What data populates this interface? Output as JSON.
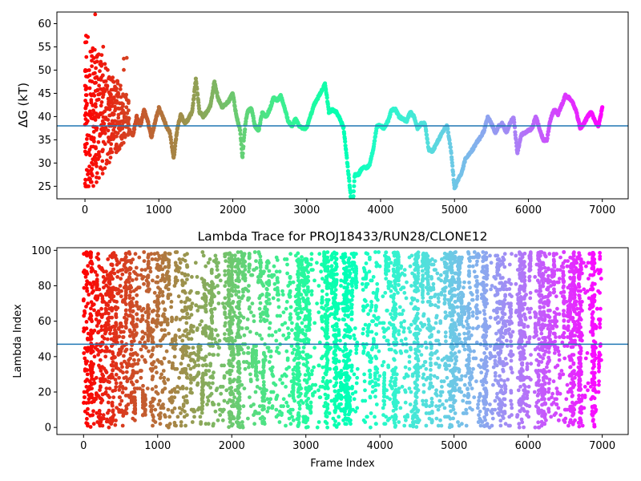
{
  "chart_data": [
    {
      "type": "scatter",
      "title": "",
      "xlabel": "",
      "ylabel": "ΔG (kT)",
      "xlim": [
        -380,
        7350
      ],
      "ylim": [
        22.3,
        62.5
      ],
      "xticks": [
        0,
        1000,
        2000,
        3000,
        4000,
        5000,
        6000,
        7000
      ],
      "xtick_labels": [
        "0",
        "1000",
        "2000",
        "3000",
        "4000",
        "5000",
        "6000",
        "7000"
      ],
      "yticks": [
        25,
        30,
        35,
        40,
        45,
        50,
        55,
        60
      ],
      "ytick_labels": [
        "25",
        "30",
        "35",
        "40",
        "45",
        "50",
        "55",
        "60"
      ],
      "hline": 38.0,
      "colormap": "rainbow (red at frame 0 → violet at frame 7000)",
      "grid": false,
      "trace_keypoints": {
        "x": [
          600,
          650,
          700,
          750,
          800,
          850,
          900,
          950,
          1000,
          1050,
          1100,
          1150,
          1200,
          1250,
          1300,
          1350,
          1400,
          1450,
          1500,
          1550,
          1600,
          1650,
          1700,
          1750,
          1800,
          1850,
          1900,
          1950,
          2000,
          2050,
          2100,
          2130,
          2150,
          2170,
          2200,
          2250,
          2300,
          2350,
          2400,
          2450,
          2500,
          2550,
          2600,
          2650,
          2700,
          2750,
          2800,
          2850,
          2900,
          2950,
          3000,
          3050,
          3100,
          3150,
          3200,
          3250,
          3300,
          3350,
          3400,
          3450,
          3500,
          3550,
          3600,
          3630,
          3650,
          3700,
          3750,
          3800,
          3850,
          3900,
          3950,
          4000,
          4050,
          4100,
          4150,
          4200,
          4250,
          4300,
          4350,
          4400,
          4450,
          4500,
          4550,
          4600,
          4650,
          4700,
          4750,
          4800,
          4850,
          4900,
          4950,
          5000,
          5050,
          5100,
          5150,
          5200,
          5250,
          5300,
          5350,
          5400,
          5450,
          5500,
          5550,
          5600,
          5650,
          5700,
          5750,
          5800,
          5850,
          5900,
          5950,
          6000,
          6050,
          6100,
          6150,
          6200,
          6250,
          6300,
          6350,
          6400,
          6450,
          6500,
          6550,
          6600,
          6650,
          6700,
          6750,
          6800,
          6850,
          6900,
          6950,
          7000
        ],
        "y": [
          37.0,
          36.0,
          40.0,
          38.0,
          41.5,
          39.0,
          35.5,
          39.0,
          41.8,
          40.0,
          38.0,
          36.5,
          31.0,
          37.5,
          40.5,
          38.5,
          39.5,
          41.0,
          48.0,
          41.0,
          40.0,
          41.0,
          42.5,
          47.5,
          44.0,
          42.0,
          42.5,
          43.5,
          45.0,
          40.0,
          37.0,
          31.0,
          35.0,
          38.5,
          41.0,
          42.0,
          38.0,
          37.0,
          41.0,
          40.0,
          41.5,
          44.0,
          43.5,
          44.5,
          42.0,
          39.0,
          38.0,
          39.5,
          38.0,
          37.5,
          37.5,
          40.0,
          42.5,
          44.0,
          45.5,
          47.0,
          41.0,
          41.5,
          41.0,
          39.5,
          37.5,
          30.0,
          22.3,
          22.3,
          27.5,
          27.5,
          29.0,
          29.0,
          29.5,
          33.0,
          38.0,
          38.0,
          37.5,
          39.0,
          41.5,
          41.5,
          40.0,
          39.5,
          39.0,
          41.0,
          40.0,
          37.5,
          38.5,
          38.5,
          33.0,
          32.5,
          34.0,
          35.5,
          37.0,
          38.0,
          33.0,
          24.5,
          26.5,
          28.0,
          31.0,
          32.0,
          33.0,
          34.5,
          35.5,
          37.0,
          40.0,
          38.5,
          36.5,
          38.0,
          38.5,
          36.5,
          38.5,
          40.0,
          32.0,
          36.0,
          36.5,
          37.0,
          37.5,
          40.0,
          37.5,
          35.0,
          35.0,
          39.5,
          41.5,
          40.5,
          42.5,
          44.5,
          44.0,
          43.0,
          41.0,
          37.5,
          38.5,
          40.0,
          41.0,
          39.0,
          38.0,
          42.0
        ]
      }
    },
    {
      "type": "scatter",
      "title": "Lambda Trace for PROJ18433/RUN28/CLONE12",
      "xlabel": "Frame Index",
      "ylabel": "Lambda Index",
      "xlim": [
        -360,
        7350
      ],
      "ylim": [
        -4,
        101.5
      ],
      "xticks": [
        0,
        1000,
        2000,
        3000,
        4000,
        5000,
        6000,
        7000
      ],
      "xtick_labels": [
        "0",
        "1000",
        "2000",
        "3000",
        "4000",
        "5000",
        "6000",
        "7000"
      ],
      "yticks": [
        0,
        20,
        40,
        60,
        80,
        100
      ],
      "ytick_labels": [
        "0",
        "20",
        "40",
        "60",
        "80",
        "100"
      ],
      "hline": 47,
      "colormap": "rainbow (red at frame 0 → violet at frame 7000)",
      "grid": false,
      "x_range": [
        0,
        6990
      ],
      "y_range": [
        0,
        99
      ],
      "dense_bands": [
        [
          1960,
          2020
        ],
        [
          2080,
          2110
        ],
        [
          2880,
          2920
        ],
        [
          2960,
          3040
        ],
        [
          3260,
          3300
        ],
        [
          3380,
          3420
        ],
        [
          3500,
          3600
        ],
        [
          4180,
          4220
        ],
        [
          4460,
          4520
        ],
        [
          4940,
          5020
        ],
        [
          5400,
          5440
        ],
        [
          5600,
          5700
        ],
        [
          5880,
          5960
        ],
        [
          6180,
          6240
        ],
        [
          6560,
          6620
        ],
        [
          6680,
          6720
        ],
        [
          6860,
          6900
        ]
      ],
      "gaps": [
        [
          3700,
          3760
        ],
        [
          4000,
          4030
        ],
        [
          5800,
          5830
        ],
        [
          6040,
          6080
        ]
      ]
    }
  ]
}
